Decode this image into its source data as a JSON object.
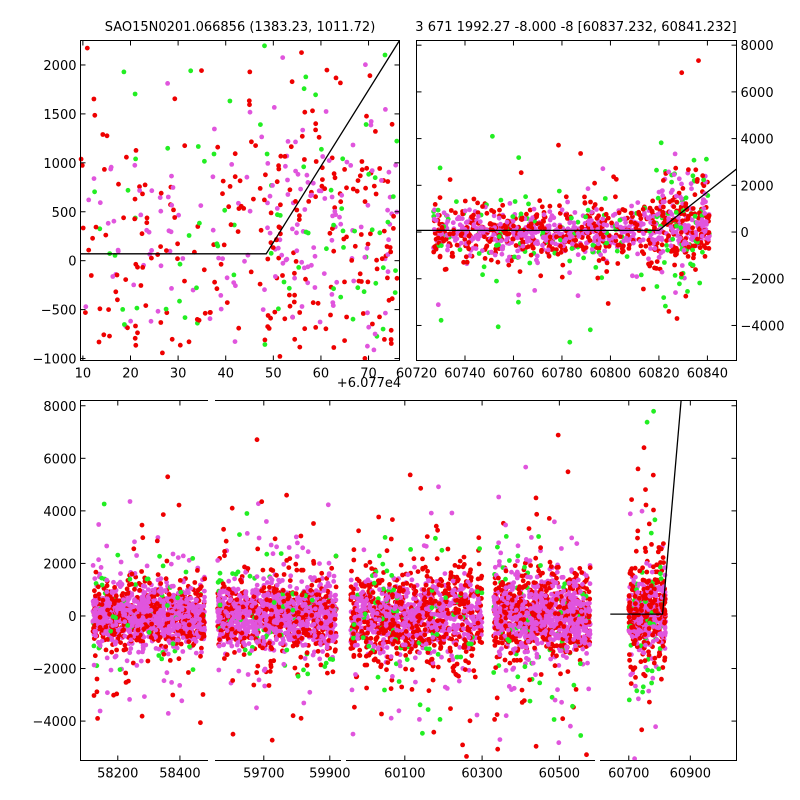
{
  "chart_data": [
    {
      "id": "top-left",
      "type": "scatter",
      "title": "SAO15N0201.066856 (1383.23, 1011.72)",
      "xlim": [
        9.5,
        76.5
      ],
      "ylim": [
        -1020,
        2250
      ],
      "xticks": [
        10,
        20,
        30,
        40,
        50,
        60,
        70
      ],
      "xtick_labels": [
        "10",
        "20",
        "30",
        "40",
        "50",
        "60",
        "70"
      ],
      "yticks": [
        -1000,
        -500,
        0,
        500,
        1000,
        1500,
        2000
      ],
      "ytick_labels": [
        "−1000",
        "−500",
        "0",
        "500",
        "1000",
        "1500",
        "2000"
      ],
      "yaxis_side": "left",
      "x_offset_label": "+6.077e4",
      "series_colors": {
        "green": "#22ee22",
        "red": "#ee0000",
        "magenta": "#e055dd"
      },
      "clusters": [
        {
          "x_range": [
            9.5,
            76
          ],
          "y_mean": 150,
          "y_sd": 550,
          "n_green": 70,
          "n_red": 220,
          "n_magenta": 120
        },
        {
          "x_range": [
            48,
            76
          ],
          "y_mean": 450,
          "y_sd": 600,
          "n_green": 40,
          "n_red": 60,
          "n_magenta": 60
        }
      ],
      "model_line": {
        "x": [
          9.5,
          48.5,
          76.5
        ],
        "y": [
          70,
          70,
          2250
        ]
      }
    },
    {
      "id": "top-right",
      "type": "scatter",
      "title": "3 671 1992.27 -8.000 -8 [60837.232, 60841.232]",
      "xlim": [
        60720,
        60852
      ],
      "ylim": [
        -5500,
        8200
      ],
      "xticks": [
        60720,
        60740,
        60760,
        60780,
        60800,
        60820,
        60840
      ],
      "xtick_labels": [
        "60720",
        "60740",
        "60760",
        "60780",
        "60800",
        "60820",
        "60840"
      ],
      "yticks": [
        -4000,
        -2000,
        0,
        2000,
        4000,
        6000,
        8000
      ],
      "ytick_labels": [
        "−4000",
        "−2000",
        "0",
        "2000",
        "4000",
        "6000",
        "8000"
      ],
      "yaxis_side": "right",
      "series_colors": {
        "green": "#22ee22",
        "red": "#ee0000",
        "magenta": "#e055dd"
      },
      "clusters": [
        {
          "x_range": [
            60727,
            60841
          ],
          "y_mean": 0,
          "y_sd": 450,
          "n_green": 120,
          "n_red": 500,
          "n_magenta": 500
        },
        {
          "x_range": [
            60819,
            60841
          ],
          "y_mean": 700,
          "y_sd": 800,
          "n_green": 40,
          "n_red": 60,
          "n_magenta": 60
        }
      ],
      "model_line": {
        "x": [
          60720,
          60820,
          60852
        ],
        "y": [
          70,
          70,
          2700
        ]
      }
    },
    {
      "id": "bottom",
      "type": "scatter",
      "title": "",
      "xlim": [
        58080,
        61050
      ],
      "ylim": [
        -5500,
        8200
      ],
      "xticks": [
        58200,
        58400,
        59700,
        59900,
        60100,
        60300,
        60500,
        60700,
        60900
      ],
      "xtick_labels": [
        "58200",
        "58400",
        "59700",
        "59900",
        "60100",
        "60300",
        "60500",
        "60700",
        "60900"
      ],
      "yticks": [
        -4000,
        -2000,
        0,
        2000,
        4000,
        6000,
        8000
      ],
      "ytick_labels": [
        "−4000",
        "−2000",
        "0",
        "2000",
        "4000",
        "6000",
        "8000"
      ],
      "yaxis_side": "left",
      "series_colors": {
        "green": "#22ee22",
        "red": "#ee0000",
        "magenta": "#e055dd"
      },
      "segments": [
        {
          "xlim": [
            58080,
            58500
          ],
          "clusters": [
            {
              "x_range": [
                58120,
                58480
              ],
              "y_mean": 0,
              "y_sd": 500,
              "n_green": 60,
              "n_red": 450,
              "n_magenta": 900
            }
          ]
        },
        {
          "xlim": [
            59540,
            59940
          ],
          "clusters": [
            {
              "x_range": [
                59560,
                59920
              ],
              "y_mean": 0,
              "y_sd": 550,
              "n_green": 70,
              "n_red": 450,
              "n_magenta": 900
            }
          ]
        },
        {
          "xlim": [
            59940,
            60600
          ],
          "clusters": [
            {
              "x_range": [
                59960,
                60300
              ],
              "y_mean": 0,
              "y_sd": 650,
              "n_green": 80,
              "n_red": 650,
              "n_magenta": 650
            },
            {
              "x_range": [
                60330,
                60580
              ],
              "y_mean": 0,
              "y_sd": 650,
              "n_green": 80,
              "n_red": 450,
              "n_magenta": 750
            }
          ]
        },
        {
          "xlim": [
            60600,
            61050
          ],
          "clusters": [
            {
              "x_range": [
                60700,
                60820
              ],
              "y_mean": 0,
              "y_sd": 700,
              "n_green": 40,
              "n_red": 250,
              "n_magenta": 250
            }
          ]
        }
      ],
      "model_line": {
        "x": [
          60640,
          60810,
          60870
        ],
        "y": [
          70,
          70,
          8200
        ]
      }
    }
  ]
}
